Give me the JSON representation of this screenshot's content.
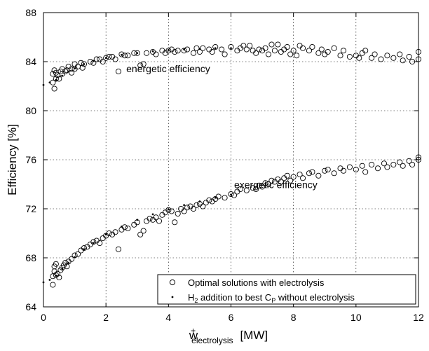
{
  "chart_data": {
    "type": "scatter",
    "title": "",
    "xlabel": {
      "main": "w",
      "sup": "+",
      "sub": "electrolysis",
      "unit": "[MW]"
    },
    "ylabel": "Efficiency [%]",
    "xlim": [
      0,
      12
    ],
    "ylim": [
      64,
      88
    ],
    "xticks": [
      "0",
      "2",
      "4",
      "6",
      "8",
      "10",
      "12"
    ],
    "yticks": [
      "64",
      "68",
      "72",
      "76",
      "80",
      "84",
      "88"
    ],
    "grid": true,
    "legend_position": "bottom-right",
    "legend": {
      "optimal": "Optimal solutions with electrolysis",
      "h2": {
        "a": "H",
        "b": "2",
        "c": " addition to best C",
        "d": "P",
        "e": " without electrolysis"
      }
    },
    "annotations": [
      {
        "text": "energetic efficiency",
        "x": 2.65,
        "y": 83.15
      },
      {
        "text": "exergetic efficiency",
        "x": 6.1,
        "y": 73.7
      }
    ],
    "series": [
      {
        "key": "energetic-optimal",
        "marker": "circle",
        "points": [
          [
            0.3,
            82.3
          ],
          [
            0.3,
            83.0
          ],
          [
            0.35,
            81.8
          ],
          [
            0.35,
            83.3
          ],
          [
            0.4,
            82.6
          ],
          [
            0.4,
            83.1
          ],
          [
            0.45,
            82.9
          ],
          [
            0.5,
            82.6
          ],
          [
            0.55,
            83.2
          ],
          [
            0.6,
            83.0
          ],
          [
            0.6,
            83.4
          ],
          [
            0.7,
            83.2
          ],
          [
            0.75,
            83.3
          ],
          [
            0.8,
            83.6
          ],
          [
            0.9,
            83.4
          ],
          [
            0.9,
            83.1
          ],
          [
            1.0,
            83.4
          ],
          [
            1.0,
            83.8
          ],
          [
            1.1,
            83.6
          ],
          [
            1.2,
            83.9
          ],
          [
            1.25,
            83.5
          ],
          [
            1.3,
            83.8
          ],
          [
            1.5,
            84.0
          ],
          [
            1.6,
            83.9
          ],
          [
            1.7,
            84.2
          ],
          [
            1.8,
            84.2
          ],
          [
            1.9,
            84.0
          ],
          [
            2.0,
            84.3
          ],
          [
            2.1,
            84.4
          ],
          [
            2.2,
            84.4
          ],
          [
            2.3,
            84.2
          ],
          [
            2.4,
            83.2
          ],
          [
            2.5,
            84.6
          ],
          [
            2.6,
            84.5
          ],
          [
            2.7,
            84.5
          ],
          [
            2.9,
            84.7
          ],
          [
            3.0,
            84.7
          ],
          [
            3.1,
            83.7
          ],
          [
            3.2,
            83.8
          ],
          [
            3.3,
            84.7
          ],
          [
            3.5,
            84.8
          ],
          [
            3.6,
            84.6
          ],
          [
            3.8,
            84.9
          ],
          [
            3.9,
            84.7
          ],
          [
            4.0,
            84.9
          ],
          [
            4.1,
            85.0
          ],
          [
            4.2,
            84.8
          ],
          [
            4.3,
            84.9
          ],
          [
            4.5,
            84.9
          ],
          [
            4.6,
            85.0
          ],
          [
            4.8,
            84.7
          ],
          [
            4.9,
            85.1
          ],
          [
            5.0,
            84.8
          ],
          [
            5.1,
            85.1
          ],
          [
            5.3,
            85.0
          ],
          [
            5.4,
            84.8
          ],
          [
            5.5,
            85.2
          ],
          [
            5.7,
            85.0
          ],
          [
            5.8,
            84.6
          ],
          [
            6.0,
            85.2
          ],
          [
            6.2,
            84.9
          ],
          [
            6.3,
            85.1
          ],
          [
            6.4,
            85.3
          ],
          [
            6.5,
            85.0
          ],
          [
            6.6,
            85.3
          ],
          [
            6.7,
            84.9
          ],
          [
            6.8,
            84.7
          ],
          [
            6.9,
            85.0
          ],
          [
            7.0,
            84.9
          ],
          [
            7.1,
            85.1
          ],
          [
            7.2,
            84.6
          ],
          [
            7.3,
            85.4
          ],
          [
            7.4,
            84.9
          ],
          [
            7.5,
            85.4
          ],
          [
            7.6,
            84.8
          ],
          [
            7.7,
            85.0
          ],
          [
            7.8,
            85.2
          ],
          [
            7.9,
            84.6
          ],
          [
            8.0,
            84.9
          ],
          [
            8.1,
            84.5
          ],
          [
            8.2,
            85.3
          ],
          [
            8.3,
            85.1
          ],
          [
            8.5,
            84.9
          ],
          [
            8.6,
            85.2
          ],
          [
            8.8,
            84.7
          ],
          [
            8.9,
            85.0
          ],
          [
            9.0,
            84.6
          ],
          [
            9.1,
            84.8
          ],
          [
            9.3,
            85.1
          ],
          [
            9.5,
            84.5
          ],
          [
            9.6,
            84.9
          ],
          [
            9.8,
            84.4
          ],
          [
            10.0,
            84.5
          ],
          [
            10.1,
            84.3
          ],
          [
            10.2,
            84.7
          ],
          [
            10.3,
            84.9
          ],
          [
            10.5,
            84.3
          ],
          [
            10.6,
            84.6
          ],
          [
            10.8,
            84.2
          ],
          [
            11.0,
            84.5
          ],
          [
            11.2,
            84.3
          ],
          [
            11.4,
            84.6
          ],
          [
            11.5,
            84.1
          ],
          [
            11.7,
            84.4
          ],
          [
            11.8,
            84.0
          ],
          [
            12.0,
            84.2
          ],
          [
            12.0,
            84.8
          ]
        ]
      },
      {
        "key": "energetic-h2",
        "marker": "dot",
        "points": [
          [
            0.0,
            82.1
          ],
          [
            0.2,
            82.3
          ],
          [
            0.4,
            82.5
          ],
          [
            0.6,
            82.85
          ],
          [
            0.8,
            83.2
          ],
          [
            1.0,
            83.45
          ],
          [
            1.3,
            83.8
          ],
          [
            1.6,
            84.05
          ],
          [
            2.0,
            84.3
          ],
          [
            2.5,
            84.55
          ],
          [
            3.0,
            84.7
          ],
          [
            3.5,
            84.85
          ],
          [
            4.0,
            84.95
          ],
          [
            4.5,
            85.0
          ],
          [
            5.0,
            85.05
          ],
          [
            5.5,
            85.1
          ],
          [
            6.0,
            85.1
          ]
        ]
      },
      {
        "key": "exergetic-optimal",
        "marker": "circle",
        "points": [
          [
            0.3,
            65.8
          ],
          [
            0.3,
            66.5
          ],
          [
            0.35,
            66.9
          ],
          [
            0.35,
            67.3
          ],
          [
            0.4,
            66.6
          ],
          [
            0.4,
            67.5
          ],
          [
            0.45,
            66.7
          ],
          [
            0.5,
            66.4
          ],
          [
            0.55,
            67.0
          ],
          [
            0.6,
            67.2
          ],
          [
            0.65,
            67.4
          ],
          [
            0.7,
            67.6
          ],
          [
            0.75,
            67.3
          ],
          [
            0.8,
            67.7
          ],
          [
            0.9,
            67.9
          ],
          [
            1.0,
            68.2
          ],
          [
            1.1,
            68.3
          ],
          [
            1.2,
            68.6
          ],
          [
            1.3,
            68.8
          ],
          [
            1.4,
            68.9
          ],
          [
            1.5,
            69.1
          ],
          [
            1.6,
            69.3
          ],
          [
            1.7,
            69.4
          ],
          [
            1.8,
            69.2
          ],
          [
            1.9,
            69.6
          ],
          [
            2.0,
            69.8
          ],
          [
            2.1,
            70.0
          ],
          [
            2.2,
            69.9
          ],
          [
            2.3,
            70.1
          ],
          [
            2.4,
            68.7
          ],
          [
            2.5,
            70.3
          ],
          [
            2.6,
            70.5
          ],
          [
            2.7,
            70.4
          ],
          [
            2.9,
            70.7
          ],
          [
            3.0,
            70.9
          ],
          [
            3.1,
            69.9
          ],
          [
            3.2,
            70.2
          ],
          [
            3.3,
            71.0
          ],
          [
            3.4,
            71.2
          ],
          [
            3.5,
            71.1
          ],
          [
            3.6,
            71.3
          ],
          [
            3.7,
            71.0
          ],
          [
            3.8,
            71.5
          ],
          [
            3.9,
            71.7
          ],
          [
            4.0,
            71.9
          ],
          [
            4.1,
            71.8
          ],
          [
            4.2,
            70.9
          ],
          [
            4.3,
            71.6
          ],
          [
            4.4,
            72.0
          ],
          [
            4.5,
            71.8
          ],
          [
            4.6,
            72.1
          ],
          [
            4.7,
            72.2
          ],
          [
            4.8,
            72.0
          ],
          [
            4.9,
            72.3
          ],
          [
            5.0,
            72.4
          ],
          [
            5.1,
            72.2
          ],
          [
            5.2,
            72.5
          ],
          [
            5.3,
            72.7
          ],
          [
            5.4,
            72.6
          ],
          [
            5.5,
            72.8
          ],
          [
            5.6,
            73.0
          ],
          [
            5.8,
            72.9
          ],
          [
            6.0,
            73.2
          ],
          [
            6.1,
            73.1
          ],
          [
            6.2,
            73.4
          ],
          [
            6.3,
            73.6
          ],
          [
            6.5,
            73.5
          ],
          [
            6.7,
            73.7
          ],
          [
            6.8,
            73.6
          ],
          [
            6.9,
            73.9
          ],
          [
            7.0,
            73.8
          ],
          [
            7.1,
            74.1
          ],
          [
            7.2,
            74.0
          ],
          [
            7.3,
            74.3
          ],
          [
            7.4,
            74.2
          ],
          [
            7.5,
            74.4
          ],
          [
            7.6,
            74.2
          ],
          [
            7.7,
            74.5
          ],
          [
            7.8,
            74.7
          ],
          [
            7.9,
            74.3
          ],
          [
            8.0,
            74.6
          ],
          [
            8.2,
            74.8
          ],
          [
            8.3,
            74.5
          ],
          [
            8.5,
            74.9
          ],
          [
            8.6,
            75.0
          ],
          [
            8.8,
            74.7
          ],
          [
            9.0,
            75.1
          ],
          [
            9.1,
            75.2
          ],
          [
            9.3,
            74.9
          ],
          [
            9.5,
            75.3
          ],
          [
            9.6,
            75.1
          ],
          [
            9.8,
            75.4
          ],
          [
            10.0,
            75.2
          ],
          [
            10.2,
            75.5
          ],
          [
            10.3,
            75.0
          ],
          [
            10.5,
            75.6
          ],
          [
            10.7,
            75.3
          ],
          [
            10.9,
            75.7
          ],
          [
            11.0,
            75.4
          ],
          [
            11.2,
            75.6
          ],
          [
            11.4,
            75.8
          ],
          [
            11.5,
            75.5
          ],
          [
            11.7,
            75.9
          ],
          [
            11.8,
            75.6
          ],
          [
            12.0,
            76.0
          ],
          [
            12.0,
            76.2
          ]
        ]
      },
      {
        "key": "exergetic-h2",
        "marker": "dot",
        "points": [
          [
            0.0,
            66.0
          ],
          [
            0.2,
            66.2
          ],
          [
            0.4,
            66.55
          ],
          [
            0.6,
            67.1
          ],
          [
            0.8,
            67.6
          ],
          [
            1.0,
            68.05
          ],
          [
            1.3,
            68.7
          ],
          [
            1.6,
            69.2
          ],
          [
            2.0,
            69.9
          ],
          [
            2.5,
            70.55
          ],
          [
            3.0,
            71.1
          ],
          [
            3.5,
            71.55
          ],
          [
            4.0,
            71.95
          ],
          [
            4.5,
            72.3
          ],
          [
            5.0,
            72.6
          ],
          [
            5.5,
            72.9
          ],
          [
            6.0,
            73.15
          ]
        ]
      }
    ]
  }
}
